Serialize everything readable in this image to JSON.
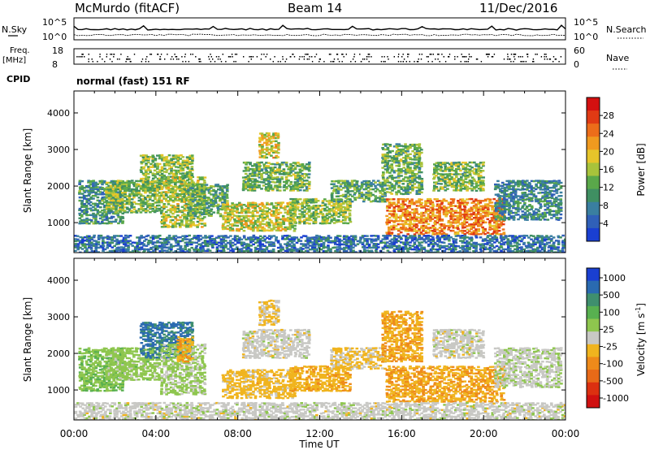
{
  "header": {
    "station": "McMurdo (fitACF)",
    "beam": "Beam 14",
    "date": "11/Dec/2016"
  },
  "panels": {
    "noise_left": "N.Sky",
    "noise_right": "N.Search",
    "noise_ticks_left": [
      "10^5",
      "10^0"
    ],
    "noise_ticks_right": [
      "10^5",
      "10^0"
    ],
    "freq_label_top": "Freq.",
    "freq_label_unit": "[MHz]",
    "freq_ticks": [
      "18",
      "8"
    ],
    "nave_label": "Nave",
    "nave_ticks": [
      "60",
      "0"
    ],
    "cpid_label": "CPID",
    "cpid_text": "normal (fast) 151 RF"
  },
  "colors": {
    "power": [
      "#1a3fd1",
      "#3060b8",
      "#3a7fa0",
      "#3f8f62",
      "#5aa84a",
      "#a8c33b",
      "#e6c52a",
      "#f09a1f",
      "#ec6d1a",
      "#e03a14",
      "#d41010"
    ],
    "velocity": [
      "#1a3fd1",
      "#2a6ab0",
      "#3f8f6e",
      "#58b050",
      "#8ec64e",
      "#c8c8c4",
      "#f0b41e",
      "#ee8a1a",
      "#e86a18",
      "#dc3010",
      "#d01010"
    ]
  },
  "chart_data": [
    {
      "type": "heatmap",
      "title": "",
      "xlabel": "Time UT",
      "ylabel": "Slant Range [km]",
      "x_ticks": [
        "00:00",
        "04:00",
        "08:00",
        "12:00",
        "16:00",
        "20:00",
        "00:00"
      ],
      "y_ticks": [
        "1000",
        "2000",
        "3000",
        "4000"
      ],
      "xlim_hours": [
        0,
        24
      ],
      "ylim_km": [
        180,
        4600
      ],
      "colorbar": {
        "label": "Power [dB]",
        "ticks": [
          "4",
          "8",
          "12",
          "16",
          "20",
          "24",
          "28"
        ],
        "range": [
          0,
          30
        ]
      },
      "regions": [
        {
          "t0": 0.2,
          "t1": 2.4,
          "r0": 1000,
          "r1": 2200,
          "v": 9
        },
        {
          "t0": 1.5,
          "t1": 4.2,
          "r0": 1300,
          "r1": 2200,
          "v": 13
        },
        {
          "t0": 3.2,
          "t1": 5.8,
          "r0": 1900,
          "r1": 2900,
          "v": 14
        },
        {
          "t0": 4.2,
          "t1": 6.4,
          "r0": 900,
          "r1": 2300,
          "v": 15
        },
        {
          "t0": 5.5,
          "t1": 7.5,
          "r0": 1200,
          "r1": 2100,
          "v": 11
        },
        {
          "t0": 7.2,
          "t1": 10.8,
          "r0": 800,
          "r1": 1600,
          "v": 16
        },
        {
          "t0": 8.2,
          "t1": 11.5,
          "r0": 1900,
          "r1": 2700,
          "v": 12
        },
        {
          "t0": 9.0,
          "t1": 10.0,
          "r0": 2800,
          "r1": 3500,
          "v": 17
        },
        {
          "t0": 10.5,
          "t1": 13.5,
          "r0": 1000,
          "r1": 1700,
          "v": 14
        },
        {
          "t0": 12.5,
          "t1": 15.2,
          "r0": 1600,
          "r1": 2200,
          "v": 11
        },
        {
          "t0": 15.0,
          "t1": 17.0,
          "r0": 1800,
          "r1": 3200,
          "v": 12
        },
        {
          "t0": 15.2,
          "t1": 21.0,
          "r0": 700,
          "r1": 1700,
          "v": 22
        },
        {
          "t0": 17.5,
          "t1": 20.0,
          "r0": 1900,
          "r1": 2700,
          "v": 13
        },
        {
          "t0": 20.5,
          "t1": 23.8,
          "r0": 1100,
          "r1": 2200,
          "v": 8
        },
        {
          "t0": 0.0,
          "t1": 24.0,
          "r0": 200,
          "r1": 700,
          "v": 6
        }
      ]
    },
    {
      "type": "heatmap",
      "title": "",
      "xlabel": "Time UT",
      "ylabel": "Slant Range [km]",
      "x_ticks": [
        "00:00",
        "04:00",
        "08:00",
        "12:00",
        "16:00",
        "20:00",
        "00:00"
      ],
      "y_ticks": [
        "1000",
        "2000",
        "3000",
        "4000"
      ],
      "xlim_hours": [
        0,
        24
      ],
      "ylim_km": [
        180,
        4600
      ],
      "colorbar": {
        "label": "Velocity [m s",
        "label_sup": "-1",
        "label_end": "]",
        "ticks": [
          "1000",
          "500",
          "100",
          "25",
          "-25",
          "-100",
          "-500",
          "-1000"
        ],
        "range": [
          -1200,
          1200
        ]
      },
      "regions": [
        {
          "t0": 0.2,
          "t1": 2.4,
          "r0": 1000,
          "r1": 2200,
          "v": 300
        },
        {
          "t0": 1.5,
          "t1": 4.2,
          "r0": 1300,
          "r1": 2200,
          "v": 200
        },
        {
          "t0": 3.2,
          "t1": 5.8,
          "r0": 1900,
          "r1": 2900,
          "v": 800
        },
        {
          "t0": 4.2,
          "t1": 6.4,
          "r0": 900,
          "r1": 2300,
          "v": 150
        },
        {
          "t0": 5.0,
          "t1": 5.8,
          "r0": 1800,
          "r1": 2500,
          "v": -300
        },
        {
          "t0": 7.2,
          "t1": 10.8,
          "r0": 800,
          "r1": 1600,
          "v": -200
        },
        {
          "t0": 8.2,
          "t1": 11.5,
          "r0": 1900,
          "r1": 2700,
          "v": 0
        },
        {
          "t0": 9.0,
          "t1": 10.0,
          "r0": 2800,
          "r1": 3500,
          "v": -150
        },
        {
          "t0": 10.5,
          "t1": 13.5,
          "r0": 1000,
          "r1": 1700,
          "v": -250
        },
        {
          "t0": 12.5,
          "t1": 15.2,
          "r0": 1600,
          "r1": 2200,
          "v": -150
        },
        {
          "t0": 15.0,
          "t1": 17.0,
          "r0": 1800,
          "r1": 3200,
          "v": -300
        },
        {
          "t0": 15.2,
          "t1": 21.0,
          "r0": 700,
          "r1": 1700,
          "v": -300
        },
        {
          "t0": 17.5,
          "t1": 20.0,
          "r0": 1900,
          "r1": 2700,
          "v": 0
        },
        {
          "t0": 20.5,
          "t1": 23.8,
          "r0": 1100,
          "r1": 2200,
          "v": 60
        },
        {
          "t0": 0.0,
          "t1": 24.0,
          "r0": 200,
          "r1": 700,
          "v": 10
        }
      ]
    }
  ]
}
